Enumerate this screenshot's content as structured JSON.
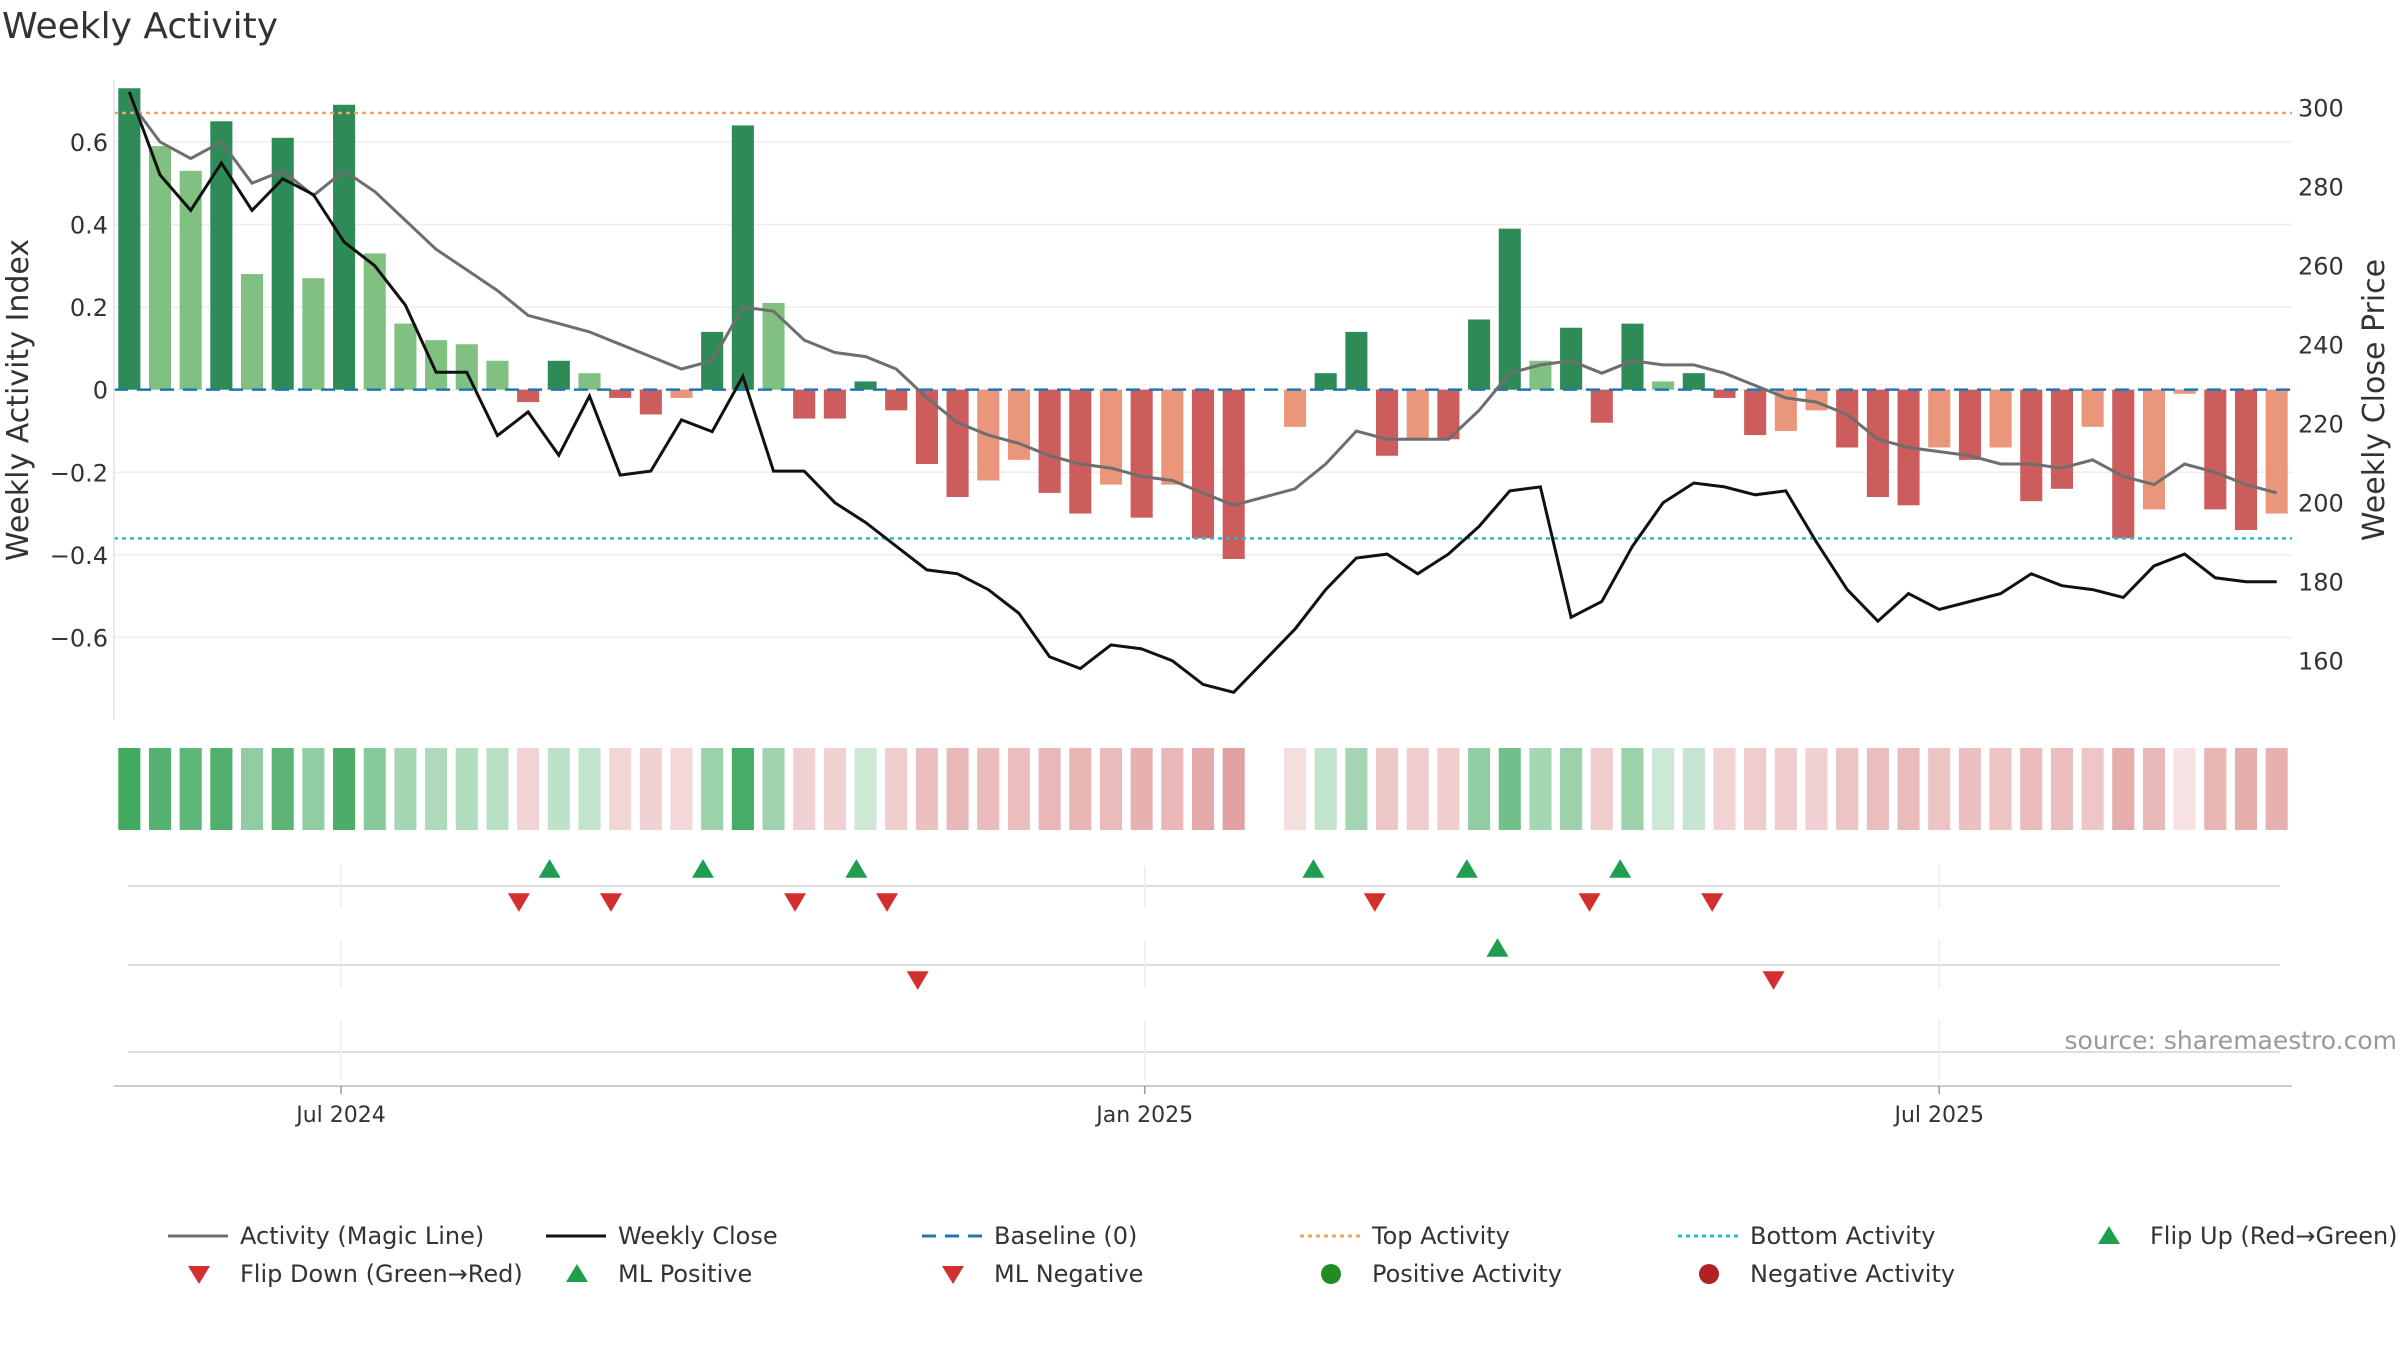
{
  "chart_data": {
    "type": "bar",
    "title": "Weekly Activity",
    "ylabel": "Weekly Activity Index",
    "y2label": "Weekly Close Price",
    "ylim": [
      -0.8,
      0.75
    ],
    "y2lim": [
      145,
      307
    ],
    "yticks": [
      0.6,
      0.4,
      0.2,
      0,
      -0.2,
      -0.4,
      -0.6
    ],
    "ytick_labels": [
      "0.6",
      "0.4",
      "0.2",
      "0",
      "−0.2",
      "−0.4",
      "−0.6"
    ],
    "y2ticks": [
      300,
      280,
      260,
      240,
      220,
      200,
      180,
      160
    ],
    "y2tick_labels": [
      "300",
      "280",
      "260",
      "240",
      "220",
      "200",
      "180",
      "160"
    ],
    "xtick_weeks": [
      7.4,
      33.6,
      59.5
    ],
    "xtick_labels": [
      "Jul 2024",
      "Jan 2025",
      "Jul 2025"
    ],
    "source": "source: sharemaestro.com",
    "top_level": 0.67,
    "bottom_level": -0.36,
    "colors": {
      "pos_strong": "#2e8b57",
      "pos_light": "#80c080",
      "neg_strong": "#cd5c5c",
      "neg_light": "#e9967a",
      "magic": "#6e6e6e",
      "close": "#111111",
      "baseline": "#1f77b4",
      "top": "#f4a460",
      "bottom": "#20c0c8",
      "up": "#1e9e4e",
      "down": "#d32f2f",
      "pos_dot": "#228b22",
      "neg_dot": "#b22222"
    },
    "series": [
      {
        "name": "Weekly Activity",
        "values": [
          0.73,
          0.59,
          0.53,
          0.65,
          0.28,
          0.61,
          0.27,
          0.69,
          0.33,
          0.16,
          0.12,
          0.11,
          0.07,
          -0.03,
          0.07,
          0.04,
          -0.02,
          -0.06,
          -0.02,
          0.14,
          0.64,
          0.21,
          -0.07,
          -0.07,
          0.02,
          -0.05,
          -0.18,
          -0.26,
          -0.22,
          -0.17,
          -0.25,
          -0.3,
          -0.23,
          -0.31,
          -0.23,
          -0.36,
          -0.41,
          null,
          -0.09,
          0.04,
          0.14,
          -0.16,
          -0.12,
          -0.12,
          0.17,
          0.39,
          0.07,
          0.15,
          -0.08,
          0.16,
          0.02,
          0.04,
          -0.02,
          -0.11,
          -0.1,
          -0.05,
          -0.14,
          -0.26,
          -0.28,
          -0.14,
          -0.17,
          -0.14,
          -0.27,
          -0.24,
          -0.09,
          -0.36,
          -0.29,
          -0.01,
          -0.29,
          -0.34,
          -0.3
        ],
        "strength": [
          "s",
          "l",
          "l",
          "s",
          "l",
          "s",
          "l",
          "s",
          "l",
          "l",
          "l",
          "l",
          "l",
          "s",
          "s",
          "l",
          "s",
          "s",
          "l",
          "s",
          "s",
          "l",
          "s",
          "s",
          "s",
          "s",
          "s",
          "s",
          "l",
          "l",
          "s",
          "s",
          "l",
          "s",
          "l",
          "s",
          "s",
          null,
          "l",
          "s",
          "s",
          "s",
          "l",
          "s",
          "s",
          "s",
          "l",
          "s",
          "s",
          "s",
          "l",
          "s",
          "s",
          "s",
          "l",
          "l",
          "s",
          "s",
          "s",
          "l",
          "s",
          "l",
          "s",
          "s",
          "l",
          "s",
          "l",
          "l",
          "s",
          "s",
          "l"
        ]
      },
      {
        "name": "Activity (Magic Line)",
        "values": [
          0.7,
          0.6,
          0.56,
          0.6,
          0.5,
          0.53,
          0.47,
          0.53,
          0.48,
          0.41,
          0.34,
          0.29,
          0.24,
          0.18,
          0.16,
          0.14,
          0.11,
          0.08,
          0.05,
          0.07,
          0.2,
          0.19,
          0.12,
          0.09,
          0.08,
          0.05,
          -0.02,
          -0.08,
          -0.11,
          -0.13,
          -0.16,
          -0.18,
          -0.19,
          -0.21,
          -0.22,
          -0.25,
          -0.28,
          -0.26,
          -0.24,
          -0.18,
          -0.1,
          -0.12,
          -0.12,
          -0.12,
          -0.05,
          0.04,
          0.06,
          0.07,
          0.04,
          0.07,
          0.06,
          0.06,
          0.04,
          0.01,
          -0.02,
          -0.03,
          -0.06,
          -0.12,
          -0.14,
          -0.15,
          -0.16,
          -0.18,
          -0.18,
          -0.19,
          -0.17,
          -0.21,
          -0.23,
          -0.18,
          -0.2,
          -0.23,
          -0.25
        ]
      },
      {
        "name": "Weekly Close",
        "values": [
          304,
          283,
          274,
          286,
          274,
          282,
          278,
          266,
          260,
          250,
          233,
          233,
          217,
          223,
          212,
          227,
          207,
          208,
          221,
          218,
          232,
          208,
          208,
          200,
          195,
          189,
          183,
          182,
          178,
          172,
          161,
          158,
          164,
          163,
          160,
          154,
          152,
          160,
          168,
          178,
          186,
          187,
          182,
          187,
          194,
          203,
          204,
          171,
          175,
          189,
          200,
          205,
          204,
          202,
          203,
          190,
          178,
          170,
          177,
          173,
          175,
          177,
          182,
          179,
          178,
          176,
          184,
          187,
          181,
          180,
          180
        ]
      }
    ],
    "heatmap": [
      0.85,
      0.75,
      0.7,
      0.78,
      0.45,
      0.72,
      0.45,
      0.8,
      0.5,
      0.35,
      0.3,
      0.28,
      0.25,
      -0.18,
      0.22,
      0.2,
      -0.17,
      -0.19,
      -0.15,
      0.4,
      0.82,
      0.38,
      -0.2,
      -0.2,
      0.15,
      -0.22,
      -0.3,
      -0.35,
      -0.33,
      -0.32,
      -0.36,
      -0.38,
      -0.34,
      -0.4,
      -0.36,
      -0.45,
      -0.5,
      null,
      -0.1,
      0.2,
      0.35,
      -0.25,
      -0.22,
      -0.22,
      0.45,
      0.6,
      0.35,
      0.4,
      -0.22,
      0.4,
      0.15,
      0.18,
      -0.18,
      -0.22,
      -0.22,
      -0.2,
      -0.28,
      -0.32,
      -0.34,
      -0.28,
      -0.3,
      -0.28,
      -0.33,
      -0.32,
      -0.26,
      -0.42,
      -0.35,
      -0.08,
      -0.38,
      -0.42,
      -0.4
    ],
    "flips": [
      {
        "week": 14.2,
        "dir": "up"
      },
      {
        "week": 19.2,
        "dir": "up"
      },
      {
        "week": 24.2,
        "dir": "up"
      },
      {
        "week": 39.1,
        "dir": "up"
      },
      {
        "week": 44.1,
        "dir": "up"
      },
      {
        "week": 49.1,
        "dir": "up"
      },
      {
        "week": 13.2,
        "dir": "down"
      },
      {
        "week": 16.2,
        "dir": "down"
      },
      {
        "week": 22.2,
        "dir": "down"
      },
      {
        "week": 25.2,
        "dir": "down"
      },
      {
        "week": 41.1,
        "dir": "down"
      },
      {
        "week": 48.1,
        "dir": "down"
      },
      {
        "week": 52.1,
        "dir": "down"
      }
    ],
    "ml_signals": [
      {
        "week": 45.1,
        "dir": "up"
      },
      {
        "week": 26.2,
        "dir": "down"
      },
      {
        "week": 54.1,
        "dir": "down"
      }
    ],
    "legend": [
      {
        "label": "Activity (Magic Line)",
        "kind": "line",
        "color": "#6e6e6e",
        "dash": ""
      },
      {
        "label": "Weekly Close",
        "kind": "line",
        "color": "#111111",
        "dash": ""
      },
      {
        "label": "Baseline (0)",
        "kind": "line",
        "color": "#1f77b4",
        "dash": "14 9"
      },
      {
        "label": "Top Activity",
        "kind": "line",
        "color": "#f4a460",
        "dash": "4 4"
      },
      {
        "label": "Bottom Activity",
        "kind": "line",
        "color": "#20c0c8",
        "dash": "4 4"
      },
      {
        "label": "Flip Up (Red→Green)",
        "kind": "up",
        "color": "#1e9e4e"
      },
      {
        "label": "Flip Down (Green→Red)",
        "kind": "down",
        "color": "#d32f2f"
      },
      {
        "label": "ML Positive",
        "kind": "up",
        "color": "#1e9e4e"
      },
      {
        "label": "ML Negative",
        "kind": "down",
        "color": "#d32f2f"
      },
      {
        "label": "Positive Activity",
        "kind": "dot",
        "color": "#228b22"
      },
      {
        "label": "Negative Activity",
        "kind": "dot",
        "color": "#b22222"
      }
    ]
  }
}
